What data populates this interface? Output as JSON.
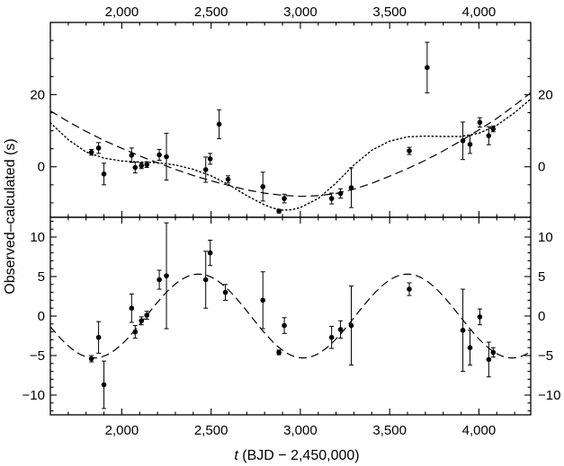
{
  "chart_data": {
    "type": "scatter",
    "shared_x": {
      "label_italic": "t",
      "label_rest": " (BJD − 2,450,000)",
      "xlim": [
        1600,
        4290
      ],
      "ticks": [
        2000,
        2500,
        3000,
        3500,
        4000
      ],
      "tick_labels": [
        "2,000",
        "2,500",
        "3,000",
        "3,500",
        "4,000"
      ]
    },
    "ylabel": "Observed–calculated (s)",
    "panels": [
      {
        "id": "top",
        "ylim": [
          -14,
          40
        ],
        "yticks": [
          0,
          20
        ],
        "ytick_labels": [
          "0",
          "20"
        ],
        "points": [
          {
            "x": 1830,
            "y": 4,
            "err": 0.8
          },
          {
            "x": 1870,
            "y": 5.2,
            "err": 1.5
          },
          {
            "x": 1900,
            "y": -2,
            "err": 3
          },
          {
            "x": 2055,
            "y": 3.2,
            "err": 2
          },
          {
            "x": 2075,
            "y": -0.2,
            "err": 1.5
          },
          {
            "x": 2110,
            "y": 0.3,
            "err": 0.8
          },
          {
            "x": 2140,
            "y": 0.6,
            "err": 0.8
          },
          {
            "x": 2210,
            "y": 3.3,
            "err": 1.5
          },
          {
            "x": 2250,
            "y": 2.8,
            "err": 6.5
          },
          {
            "x": 2470,
            "y": -0.8,
            "err": 3.5
          },
          {
            "x": 2495,
            "y": 2.2,
            "err": 1.5
          },
          {
            "x": 2545,
            "y": 11.8,
            "err": 4
          },
          {
            "x": 2595,
            "y": -3.5,
            "err": 1
          },
          {
            "x": 2790,
            "y": -5.5,
            "err": 4
          },
          {
            "x": 2880,
            "y": -12.3,
            "err": 0.5
          },
          {
            "x": 2910,
            "y": -8.8,
            "err": 1.2
          },
          {
            "x": 3175,
            "y": -8.8,
            "err": 1.5
          },
          {
            "x": 3225,
            "y": -7.4,
            "err": 1.3
          },
          {
            "x": 3285,
            "y": -5.8,
            "err": 5.5
          },
          {
            "x": 3610,
            "y": 4.4,
            "err": 1
          },
          {
            "x": 3710,
            "y": 27.5,
            "err": 7
          },
          {
            "x": 3910,
            "y": 7.2,
            "err": 5.2
          },
          {
            "x": 3950,
            "y": 6.2,
            "err": 2.5
          },
          {
            "x": 4005,
            "y": 12.3,
            "err": 1.3
          },
          {
            "x": 4055,
            "y": 8.6,
            "err": 2.5
          },
          {
            "x": 4080,
            "y": 10.5,
            "err": 0.8
          }
        ],
        "curves": [
          {
            "style": "dashed",
            "x": [
              1600,
              1700,
              1800,
              1900,
              2000,
              2100,
              2200,
              2300,
              2400,
              2500,
              2600,
              2700,
              2800,
              2900,
              3000,
              3100,
              3200,
              3300,
              3400,
              3500,
              3600,
              3700,
              3800,
              3900,
              4000,
              4100,
              4200,
              4290
            ],
            "y": [
              15.5,
              12.5,
              9.8,
              7.3,
              5.1,
              3,
              1.1,
              -0.7,
              -2.4,
              -3.9,
              -5.2,
              -6.4,
              -7.3,
              -7.9,
              -8.2,
              -8,
              -7.4,
              -6.2,
              -4.6,
              -2.6,
              -0.5,
              1.8,
              4.4,
              7.2,
              10.2,
              13.4,
              17,
              20.5
            ]
          },
          {
            "style": "dotted",
            "x": [
              1600,
              1700,
              1800,
              1900,
              2000,
              2100,
              2200,
              2300,
              2400,
              2500,
              2600,
              2700,
              2800,
              2850,
              2900,
              2950,
              3000,
              3100,
              3200,
              3300,
              3400,
              3500,
              3600,
              3700,
              3800,
              3900,
              4000,
              4100,
              4200,
              4290
            ],
            "y": [
              12.2,
              7.5,
              4.1,
              2.4,
              1.6,
              1.3,
              1.1,
              0.5,
              -0.7,
              -2.5,
              -5,
              -8,
              -10.6,
              -11.5,
              -12,
              -11.9,
              -11.3,
              -8.8,
              -4.5,
              0.5,
              4.6,
              7.1,
              8.3,
              8.5,
              8.4,
              8.4,
              9.3,
              11.5,
              15,
              18.8
            ]
          }
        ]
      },
      {
        "id": "bottom",
        "ylim": [
          -12.5,
          12.5
        ],
        "yticks": [
          -10,
          -5,
          0,
          5,
          10
        ],
        "ytick_labels": [
          "−10",
          "−5",
          "0",
          "5",
          "10"
        ],
        "points": [
          {
            "x": 1830,
            "y": -5.4,
            "err": 0.4
          },
          {
            "x": 1870,
            "y": -2.7,
            "err": 2
          },
          {
            "x": 1900,
            "y": -8.7,
            "err": 3
          },
          {
            "x": 2055,
            "y": 1,
            "err": 1.8
          },
          {
            "x": 2075,
            "y": -2,
            "err": 0.8
          },
          {
            "x": 2110,
            "y": -0.6,
            "err": 0.5
          },
          {
            "x": 2140,
            "y": 0.1,
            "err": 0.5
          },
          {
            "x": 2210,
            "y": 4.6,
            "err": 1.2
          },
          {
            "x": 2250,
            "y": 5.1,
            "err": 6.7
          },
          {
            "x": 2470,
            "y": 4.6,
            "err": 3.6
          },
          {
            "x": 2495,
            "y": 8,
            "err": 1.6
          },
          {
            "x": 2580,
            "y": 3,
            "err": 1
          },
          {
            "x": 2790,
            "y": 2,
            "err": 3.6
          },
          {
            "x": 2880,
            "y": -4.6,
            "err": 0.3
          },
          {
            "x": 2910,
            "y": -1.2,
            "err": 1
          },
          {
            "x": 3175,
            "y": -2.7,
            "err": 1.4
          },
          {
            "x": 3225,
            "y": -1.7,
            "err": 1.1
          },
          {
            "x": 3285,
            "y": -1.2,
            "err": 5
          }
        ],
        "points_b": [
          {
            "x": 3610,
            "y": 3.4,
            "err": 0.8
          },
          {
            "x": 3910,
            "y": -1.8,
            "err": 5.2
          },
          {
            "x": 3950,
            "y": -4,
            "err": 2.2
          },
          {
            "x": 4005,
            "y": -0.1,
            "err": 1
          },
          {
            "x": 4055,
            "y": -5.5,
            "err": 2.2
          },
          {
            "x": 4080,
            "y": -4.6,
            "err": 0.6
          }
        ],
        "curves": [
          {
            "style": "dashed",
            "type": "sine",
            "amplitude": 5.3,
            "period": 1170,
            "peak_x": 2430,
            "xmin": 1600,
            "xmax": 4290
          }
        ]
      }
    ]
  }
}
